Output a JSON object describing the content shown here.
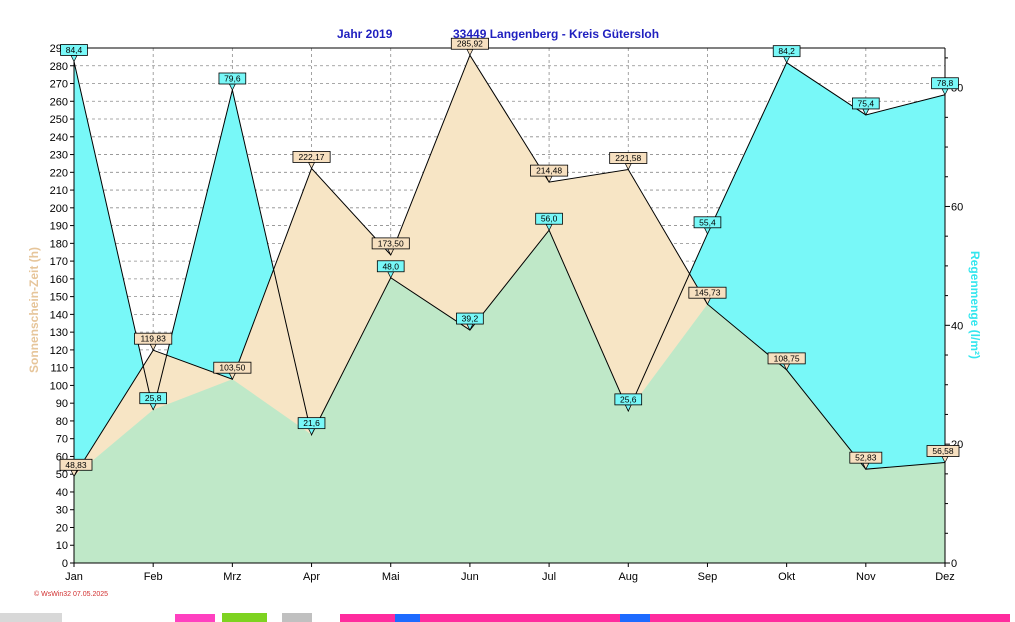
{
  "chart_data": {
    "type": "area",
    "title_left": "Jahr  2019",
    "title_right": "33449 Langenberg - Kreis Gütersloh",
    "ylabel_left": "Sonnenschein-Zeit  (h)",
    "ylabel_right": "Regenmenge   (l/m²)",
    "categories": [
      "Jan",
      "Feb",
      "Mrz",
      "Apr",
      "Mai",
      "Jun",
      "Jul",
      "Aug",
      "Sep",
      "Okt",
      "Nov",
      "Dez"
    ],
    "y_left_ticks": [
      "0",
      "10",
      "20",
      "30",
      "40",
      "50",
      "60",
      "70",
      "80",
      "90",
      "100",
      "110",
      "120",
      "130",
      "140",
      "150",
      "160",
      "170",
      "180",
      "190",
      "200",
      "210",
      "220",
      "230",
      "240",
      "250",
      "260",
      "270",
      "280",
      "290"
    ],
    "y_right_ticks": [
      "0",
      "20",
      "40",
      "60",
      "80"
    ],
    "ylim_left": [
      0,
      290
    ],
    "ylim_right": [
      0,
      86.667
    ],
    "grid": true,
    "series": [
      {
        "name": "Sonnenschein-Zeit  (h)",
        "axis": "left",
        "color": "#f7e5c5",
        "values": [
          48.83,
          119.83,
          103.5,
          222.17,
          173.5,
          285.92,
          214.48,
          221.58,
          145.73,
          108.75,
          52.83,
          56.58
        ],
        "labels": [
          "48,83",
          "119,83",
          "103,50",
          "222,17",
          "173,50",
          "285,92",
          "214,48",
          "221,58",
          "145,73",
          "108,75",
          "52,83",
          "56,58"
        ]
      },
      {
        "name": "Regenmenge   (l/m²)",
        "axis": "right",
        "color": "#78f8f8",
        "values": [
          84.4,
          25.8,
          79.6,
          21.6,
          48.0,
          39.2,
          56.0,
          25.6,
          55.4,
          84.2,
          75.4,
          78.8
        ],
        "labels": [
          "84,4",
          "25,8",
          "79,6",
          "21,6",
          "48,0",
          "39,2",
          "56,0",
          "25,6",
          "55,4",
          "84,2",
          "75,4",
          "78,8"
        ]
      }
    ],
    "overlap_color": "#bfe8c8",
    "footer": "© WsWin32  07.05.2025"
  }
}
